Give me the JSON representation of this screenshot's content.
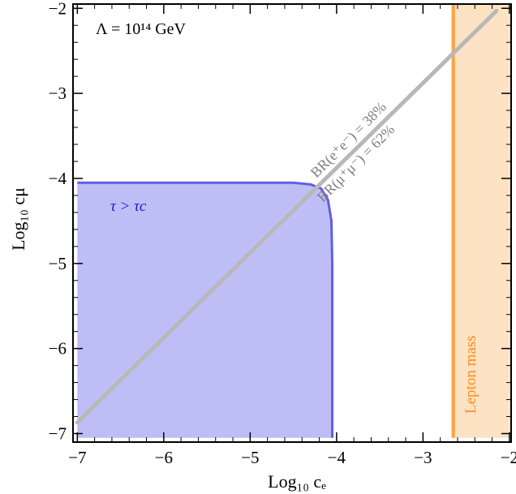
{
  "chart_data": {
    "type": "area",
    "xlabel": "Log₁₀ cₑ",
    "ylabel": "Log₁₀ cμ",
    "xlim": [
      -7.05,
      -1.98
    ],
    "ylim": [
      -7.1,
      -1.95
    ],
    "x_ticks": [
      -7,
      -6,
      -5,
      -4,
      -3,
      -2
    ],
    "y_ticks": [
      -7,
      -6,
      -5,
      -4,
      -3,
      -2
    ],
    "x_tick_labels": [
      "−7",
      "−6",
      "−5",
      "−4",
      "−3",
      "−2"
    ],
    "y_tick_labels": [
      "−7",
      "−6",
      "−5",
      "−4",
      "−3",
      "−2"
    ],
    "annotation": "Λ = 10¹⁴ GeV",
    "regions": [
      {
        "name": "τ > τc",
        "color": "#6b6be8",
        "boundary": [
          [
            -7.0,
            -4.05
          ],
          [
            -4.5,
            -4.05
          ],
          [
            -4.3,
            -4.07
          ],
          [
            -4.18,
            -4.12
          ],
          [
            -4.1,
            -4.25
          ],
          [
            -4.06,
            -4.5
          ],
          [
            -4.05,
            -5.0
          ],
          [
            -4.05,
            -7.05
          ],
          [
            -7.0,
            -7.05
          ]
        ]
      },
      {
        "name": "Lepton mass",
        "color": "#ffa040",
        "x_range": [
          -2.65,
          -1.98
        ],
        "y_range": [
          -7.05,
          -1.95
        ]
      }
    ],
    "series": [
      {
        "name": "BR(e⁺e⁻) = 38%  BR(μ⁺μ⁻) = 62%",
        "x": [
          -7.0,
          -2.15
        ],
        "y": [
          -6.87,
          -2.03
        ]
      }
    ],
    "labels": {
      "region1": "τ > τc",
      "region2": "Lepton mass",
      "line_upper": "BR(e⁺e⁻) = 38%",
      "line_lower": "BR(μ⁺μ⁻) = 62%"
    },
    "colors": {
      "region1_fill": "#b3b3f5",
      "region1_edge": "#6060e0",
      "region1_text": "#1a1ad0",
      "region2_fill": "#fde2c4",
      "region2_edge": "#ffa040",
      "region2_text": "#ff8c1a",
      "line": "#b8b8b8",
      "line_text": "#808080"
    },
    "grid": false
  }
}
